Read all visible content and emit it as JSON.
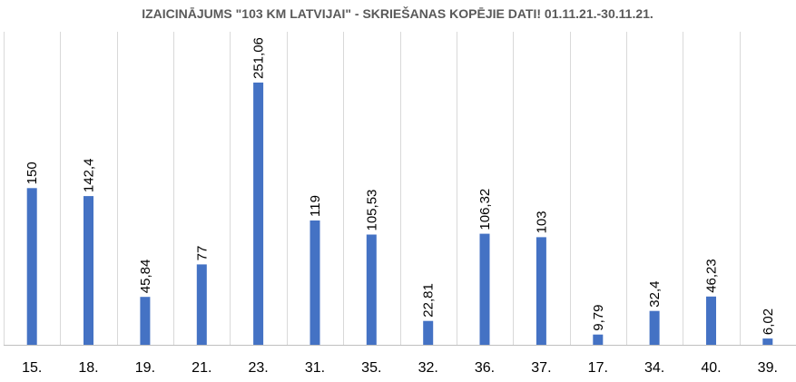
{
  "chart_data": {
    "type": "bar",
    "title": "IZAICINĀJUMS \"103 KM LATVIJAI\" - SKRIEŠANAS KOPĒJIE DATI! 01.11.21.-30.11.21.",
    "categories": [
      "15.",
      "18.",
      "19.",
      "21.",
      "23.",
      "31.",
      "35.",
      "32.",
      "36.",
      "37.",
      "17.",
      "34.",
      "40.",
      "39."
    ],
    "values": [
      150,
      142.4,
      45.84,
      77,
      251.06,
      119,
      105.53,
      22.81,
      106.32,
      103,
      9.79,
      32.4,
      46.23,
      6.02
    ],
    "data_labels": [
      "150",
      "142,4",
      "45,84",
      "77",
      "251,06",
      "119",
      "105,53",
      "22,81",
      "106,32",
      "103",
      "9,79",
      "32,4",
      "46,23",
      "6,02"
    ],
    "ylim": [
      0,
      300
    ],
    "grid": "vertical",
    "xlabel": "",
    "ylabel": "",
    "colors": {
      "bar": "#4472c4",
      "grid": "#d9d9d9",
      "axis": "#bfbfbf",
      "title": "#595959"
    }
  }
}
